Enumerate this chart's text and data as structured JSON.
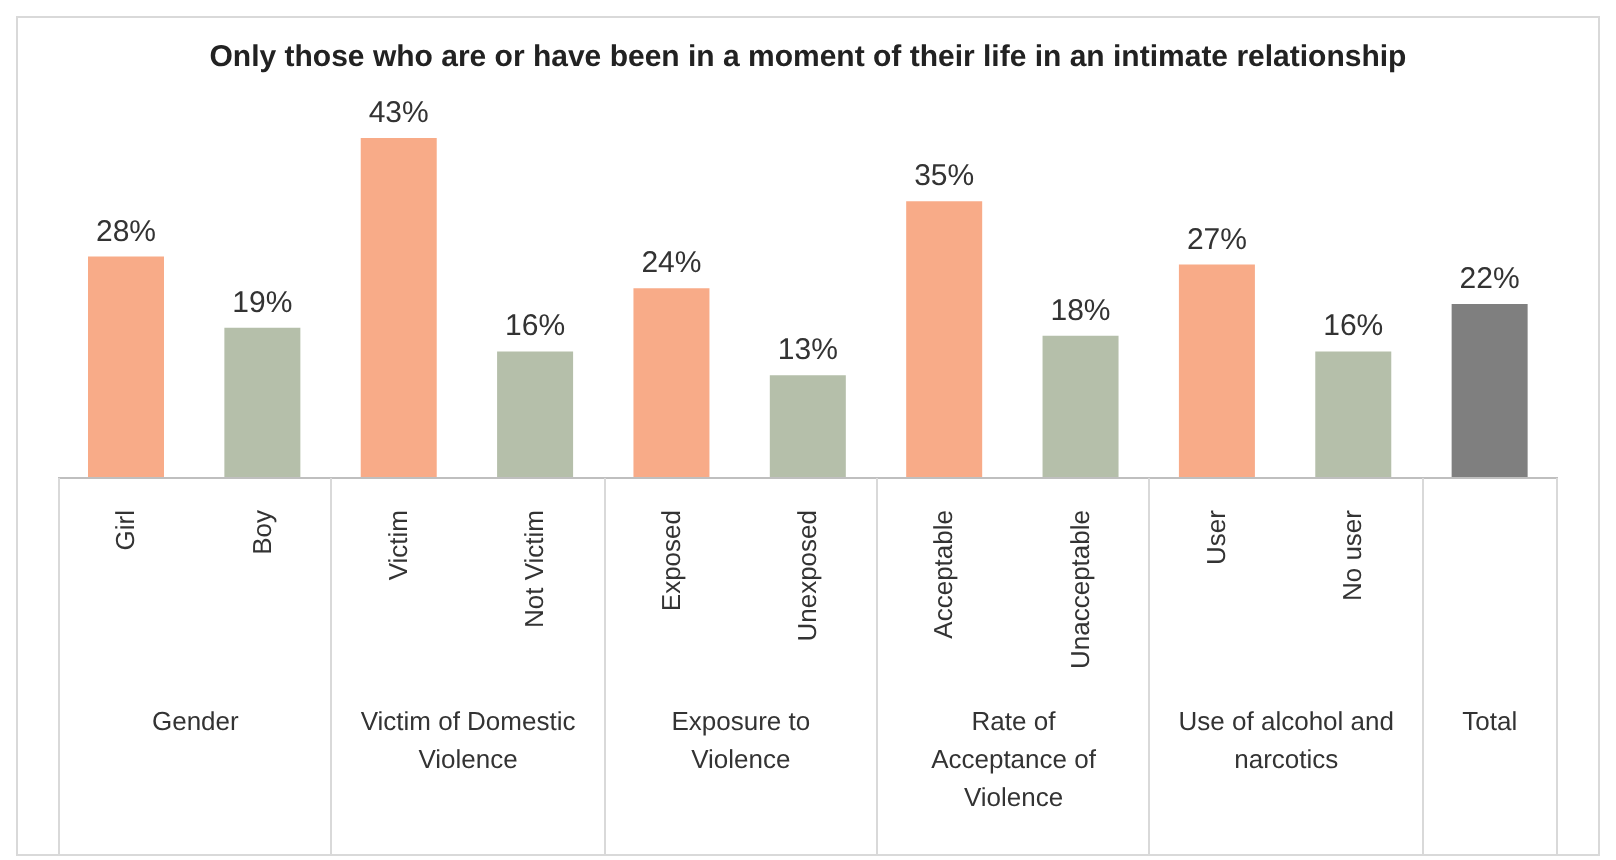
{
  "chart_data": {
    "type": "bar",
    "title": "Only those who are or have been in a moment of their life in an intimate relationship",
    "categories": [
      "Girl",
      "Boy",
      "Victim",
      "Not Victim",
      "Exposed",
      "Unexposed",
      "Acceptable",
      "Unacceptable",
      "User",
      "No user",
      null
    ],
    "values": [
      28,
      19,
      43,
      16,
      24,
      13,
      35,
      18,
      27,
      16,
      22
    ],
    "value_labels": [
      "28%",
      "19%",
      "43%",
      "16%",
      "24%",
      "13%",
      "35%",
      "18%",
      "27%",
      "16%",
      "22%"
    ],
    "colors": [
      "#f8ab88",
      "#b5bfaa",
      "#f8ab88",
      "#b5bfaa",
      "#f8ab88",
      "#b5bfaa",
      "#f8ab88",
      "#b5bfaa",
      "#f8ab88",
      "#b5bfaa",
      "#7f7f7f"
    ],
    "annotations": [
      "Gender",
      "Victim of Domestic Violence",
      "Exposure to Violence",
      "Rate of Acceptance of Violence",
      "Use of alcohol and narcotics",
      "Total"
    ],
    "grid": false,
    "legend": false
  }
}
